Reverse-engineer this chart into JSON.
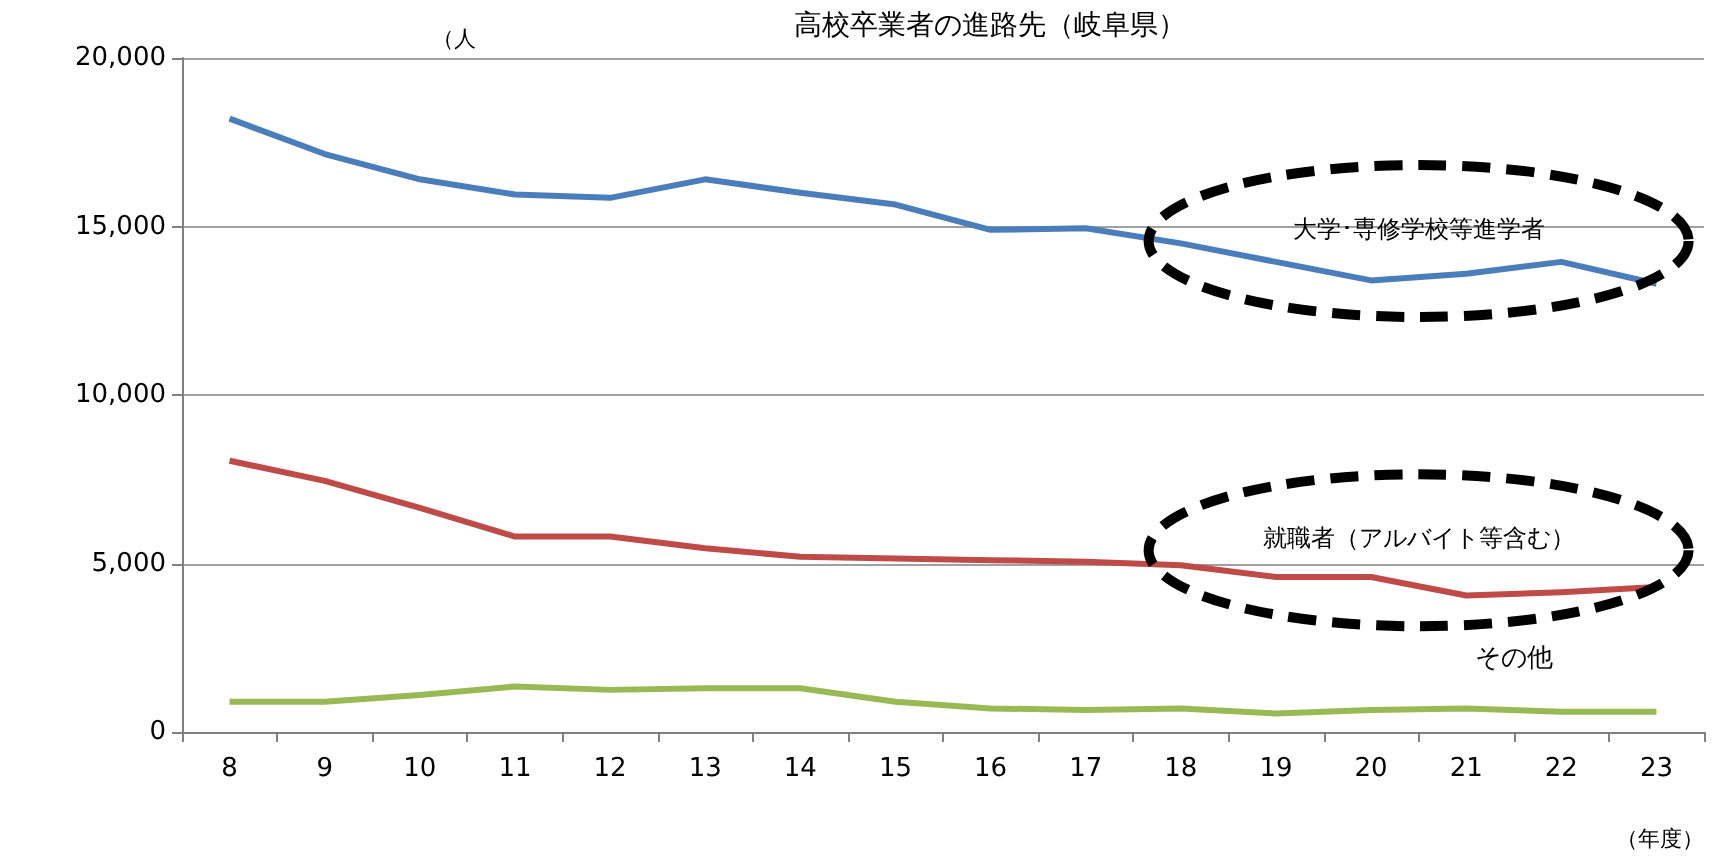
{
  "chart_data": {
    "type": "line",
    "title": "高校卒業者の進路先（岐阜県）",
    "ylabel": "（人",
    "xlabel": "（年度）",
    "categories": [
      "8",
      "9",
      "10",
      "11",
      "12",
      "13",
      "14",
      "15",
      "16",
      "17",
      "18",
      "19",
      "20",
      "21",
      "22",
      "23"
    ],
    "series": [
      {
        "name": "大学･専修学校等進学者",
        "color": "#4a7ebb",
        "values": [
          18200,
          17150,
          16400,
          15950,
          15850,
          16400,
          16000,
          15650,
          14900,
          14950,
          14500,
          13950,
          13400,
          13600,
          13950,
          13300
        ]
      },
      {
        "name": "就職者（アルバイト等含む）",
        "color": "#be4b48",
        "values": [
          8050,
          7450,
          6650,
          5800,
          5800,
          5450,
          5200,
          5150,
          5100,
          5050,
          4950,
          4600,
          4600,
          4050,
          4150,
          4300
        ]
      },
      {
        "name": "その他",
        "color": "#98b954",
        "values": [
          900,
          900,
          1100,
          1350,
          1250,
          1300,
          1300,
          900,
          700,
          650,
          700,
          550,
          650,
          700,
          600,
          600
        ]
      }
    ],
    "ylim": [
      0,
      20000
    ],
    "yticks": [
      0,
      {
        "value": 5000,
        "label": "5,000"
      },
      {
        "value": 10000,
        "label": "10,000"
      },
      {
        "value": 15000,
        "label": "15,000"
      },
      {
        "value": 20000,
        "label": "20,000"
      }
    ],
    "grid": "y",
    "marker": "none",
    "line_style": "solid",
    "legend": false
  }
}
